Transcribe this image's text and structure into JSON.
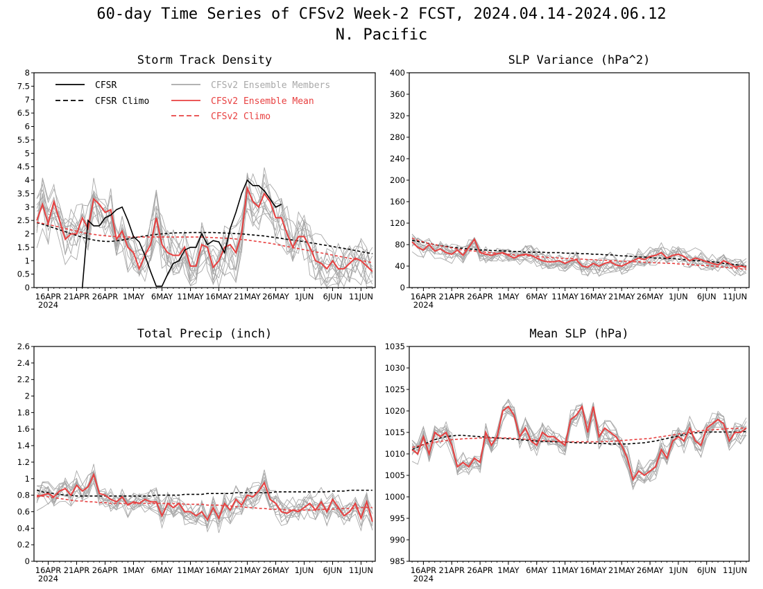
{
  "title": "60-day Time Series of CFSv2 Week-2 FCST, 2024.04.14-2024.06.12",
  "subtitle": "N. Pacific",
  "x_tick_labels": [
    "16APR",
    "21APR",
    "26APR",
    "1MAY",
    "6MAY",
    "11MAY",
    "16MAY",
    "21MAY",
    "26MAY",
    "1JUN",
    "6JUN",
    "11JUN"
  ],
  "x_year_label": "2024",
  "colors": {
    "cfsr": "#000000",
    "members": "#a8a8a8",
    "ens_mean": "#e84040"
  },
  "legend": {
    "cfsr": "CFSR",
    "cfsr_climo": "CFSR Climo",
    "members": "CFSv2 Ensemble Members",
    "ens_mean": "CFSv2 Ensemble Mean",
    "cfsv2_climo": "CFSv2 Climo"
  },
  "chart_data": [
    {
      "type": "line",
      "title": "Storm Track Density",
      "x_start": "2024-04-14",
      "x_end": "2024-06-12",
      "ylim": [
        0,
        8
      ],
      "yticks": [
        "0",
        "0.5",
        "1",
        "1.5",
        "2",
        "2.5",
        "3",
        "3.5",
        "4",
        "4.5",
        "5",
        "5.5",
        "6",
        "6.5",
        "7",
        "7.5",
        "8"
      ],
      "legend_position": "top-left",
      "series": [
        {
          "name": "CFSR",
          "values": [
            null,
            null,
            null,
            null,
            null,
            null,
            null,
            null,
            0,
            2.5,
            2.3,
            2.3,
            2.6,
            2.7,
            2.9,
            3.0,
            2.5,
            1.9,
            1.7,
            1.2,
            0.6,
            0.05,
            0.05,
            0.5,
            0.9,
            1.0,
            1.4,
            1.5,
            1.5,
            2.0,
            1.6,
            1.75,
            1.7,
            1.3,
            2.2,
            2.8,
            3.5,
            4.0,
            3.8,
            3.8,
            3.6,
            3.3,
            3.0,
            3.1,
            null,
            null,
            null,
            null,
            null,
            null,
            null,
            null,
            null,
            null,
            null,
            null,
            null,
            null,
            null,
            null
          ]
        },
        {
          "name": "CFSR Climo",
          "values": [
            2.42,
            2.36,
            2.29,
            2.22,
            2.15,
            2.08,
            2.01,
            1.94,
            1.87,
            1.82,
            1.77,
            1.74,
            1.72,
            1.72,
            1.74,
            1.77,
            1.81,
            1.85,
            1.89,
            1.92,
            1.95,
            1.98,
            2.0,
            2.02,
            2.03,
            2.04,
            2.04,
            2.05,
            2.05,
            2.05,
            2.05,
            2.05,
            2.04,
            2.03,
            2.02,
            2.01,
            2.0,
            1.98,
            1.96,
            1.94,
            1.92,
            1.89,
            1.86,
            1.83,
            1.8,
            1.77,
            1.74,
            1.71,
            1.67,
            1.64,
            1.6,
            1.57,
            1.53,
            1.49,
            1.46,
            1.42,
            1.38,
            1.34,
            1.3,
            1.26
          ]
        },
        {
          "name": "CFSv2 Ensemble Mean",
          "values": [
            2.5,
            3.1,
            2.4,
            3.2,
            2.5,
            1.8,
            2.0,
            2.0,
            2.6,
            2.2,
            3.3,
            3.1,
            2.8,
            2.9,
            1.8,
            2.1,
            1.5,
            1.3,
            0.7,
            1.2,
            1.6,
            2.6,
            1.6,
            1.3,
            1.2,
            1.2,
            1.5,
            0.8,
            0.8,
            1.6,
            1.5,
            0.75,
            1.0,
            1.5,
            1.6,
            1.3,
            2.0,
            3.7,
            3.2,
            3.0,
            3.5,
            3.2,
            2.6,
            2.6,
            2.0,
            1.5,
            1.9,
            1.9,
            1.5,
            1.0,
            0.9,
            0.7,
            1.0,
            0.7,
            0.7,
            0.9,
            1.1,
            1.0,
            0.8,
            0.6
          ]
        },
        {
          "name": "CFSv2 Climo",
          "values": [
            2.43,
            2.39,
            2.35,
            2.3,
            2.25,
            2.2,
            2.15,
            2.1,
            2.05,
            2.01,
            1.98,
            1.95,
            1.93,
            1.91,
            1.9,
            1.89,
            1.88,
            1.88,
            1.88,
            1.88,
            1.88,
            1.88,
            1.88,
            1.88,
            1.88,
            1.88,
            1.88,
            1.88,
            1.88,
            1.88,
            1.87,
            1.86,
            1.85,
            1.84,
            1.83,
            1.81,
            1.79,
            1.77,
            1.74,
            1.71,
            1.68,
            1.65,
            1.61,
            1.57,
            1.53,
            1.49,
            1.45,
            1.41,
            1.37,
            1.33,
            1.29,
            1.25,
            1.21,
            1.17,
            1.13,
            1.09,
            1.05,
            1.01,
            0.97,
            0.93
          ]
        }
      ]
    },
    {
      "type": "line",
      "title": "SLP Variance (hPa^2)",
      "x_start": "2024-04-14",
      "x_end": "2024-06-12",
      "ylim": [
        0,
        400
      ],
      "yticks": [
        "0",
        "40",
        "80",
        "120",
        "160",
        "200",
        "240",
        "280",
        "320",
        "360",
        "400"
      ],
      "series": [
        {
          "name": "CFSR Climo",
          "values": [
            88,
            86,
            84,
            82,
            80,
            78,
            77,
            75,
            74,
            73,
            72,
            71,
            70,
            70,
            69,
            69,
            68,
            68,
            67,
            67,
            66,
            66,
            66,
            66,
            65,
            65,
            65,
            64,
            64,
            64,
            63,
            63,
            62,
            62,
            61,
            61,
            60,
            59,
            59,
            58,
            57,
            57,
            56,
            55,
            55,
            54,
            54,
            53,
            52,
            51,
            50,
            50,
            49,
            48,
            47,
            45,
            44,
            43,
            41,
            40
          ]
        },
        {
          "name": "CFSv2 Ensemble Mean",
          "values": [
            85,
            75,
            70,
            80,
            68,
            72,
            65,
            62,
            70,
            60,
            75,
            90,
            65,
            62,
            60,
            63,
            65,
            60,
            55,
            60,
            62,
            60,
            55,
            50,
            48,
            48,
            50,
            45,
            50,
            52,
            40,
            38,
            45,
            40,
            45,
            48,
            42,
            40,
            45,
            50,
            55,
            52,
            58,
            60,
            65,
            55,
            60,
            62,
            58,
            50,
            55,
            52,
            48,
            45,
            42,
            50,
            45,
            38,
            40,
            38
          ]
        },
        {
          "name": "CFSv2 Climo",
          "values": [
            92,
            88,
            85,
            82,
            80,
            78,
            76,
            74,
            72,
            70,
            69,
            68,
            67,
            66,
            65,
            64,
            63,
            62,
            61,
            60,
            60,
            59,
            58,
            57,
            56,
            56,
            55,
            54,
            54,
            53,
            53,
            52,
            52,
            51,
            51,
            50,
            50,
            49,
            49,
            48,
            48,
            47,
            47,
            46,
            46,
            45,
            45,
            44,
            44,
            43,
            42,
            41,
            41,
            40,
            39,
            38,
            37,
            36,
            35,
            34
          ]
        }
      ]
    },
    {
      "type": "line",
      "title": "Total Precip (inch)",
      "x_start": "2024-04-14",
      "x_end": "2024-06-12",
      "ylim": [
        0,
        2.6
      ],
      "yticks": [
        "0",
        "0.2",
        "0.4",
        "0.6",
        "0.8",
        "1",
        "1.2",
        "1.4",
        "1.6",
        "1.8",
        "2",
        "2.2",
        "2.4",
        "2.6"
      ],
      "series": [
        {
          "name": "CFSR Climo",
          "values": [
            0.86,
            0.84,
            0.83,
            0.82,
            0.81,
            0.8,
            0.8,
            0.79,
            0.79,
            0.79,
            0.79,
            0.79,
            0.79,
            0.79,
            0.79,
            0.79,
            0.79,
            0.79,
            0.79,
            0.79,
            0.79,
            0.8,
            0.8,
            0.8,
            0.8,
            0.8,
            0.81,
            0.81,
            0.81,
            0.81,
            0.82,
            0.82,
            0.82,
            0.82,
            0.82,
            0.83,
            0.83,
            0.83,
            0.83,
            0.83,
            0.83,
            0.83,
            0.84,
            0.84,
            0.84,
            0.84,
            0.84,
            0.84,
            0.84,
            0.84,
            0.84,
            0.84,
            0.85,
            0.85,
            0.85,
            0.86,
            0.86,
            0.86,
            0.86,
            0.86
          ]
        },
        {
          "name": "CFSv2 Ensemble Mean",
          "values": [
            0.78,
            0.8,
            0.82,
            0.78,
            0.85,
            0.88,
            0.8,
            0.92,
            0.85,
            0.9,
            1.05,
            0.82,
            0.8,
            0.75,
            0.72,
            0.78,
            0.68,
            0.72,
            0.7,
            0.75,
            0.72,
            0.72,
            0.55,
            0.7,
            0.65,
            0.7,
            0.6,
            0.6,
            0.55,
            0.6,
            0.5,
            0.65,
            0.52,
            0.7,
            0.62,
            0.75,
            0.68,
            0.8,
            0.78,
            0.85,
            0.95,
            0.75,
            0.7,
            0.6,
            0.58,
            0.62,
            0.6,
            0.65,
            0.7,
            0.62,
            0.72,
            0.6,
            0.75,
            0.65,
            0.55,
            0.6,
            0.7,
            0.52,
            0.72,
            0.48
          ]
        },
        {
          "name": "CFSv2 Climo",
          "values": [
            0.8,
            0.79,
            0.78,
            0.77,
            0.76,
            0.75,
            0.74,
            0.73,
            0.73,
            0.72,
            0.72,
            0.71,
            0.71,
            0.7,
            0.7,
            0.7,
            0.7,
            0.7,
            0.7,
            0.7,
            0.7,
            0.7,
            0.7,
            0.7,
            0.7,
            0.7,
            0.69,
            0.69,
            0.69,
            0.69,
            0.68,
            0.68,
            0.68,
            0.67,
            0.67,
            0.66,
            0.66,
            0.65,
            0.65,
            0.64,
            0.64,
            0.63,
            0.63,
            0.63,
            0.62,
            0.62,
            0.62,
            0.62,
            0.62,
            0.62,
            0.63,
            0.63,
            0.63,
            0.64,
            0.64,
            0.64,
            0.64,
            0.65,
            0.65,
            0.65
          ]
        }
      ]
    },
    {
      "type": "line",
      "title": "Mean SLP (hPa)",
      "x_start": "2024-04-14",
      "x_end": "2024-06-12",
      "ylim": [
        985,
        1035
      ],
      "yticks": [
        "985",
        "990",
        "995",
        "1000",
        "1005",
        "1010",
        "1015",
        "1020",
        "1025",
        "1030",
        "1035"
      ],
      "series": [
        {
          "name": "CFSR Climo",
          "values": [
            1011.0,
            1011.6,
            1012.2,
            1012.8,
            1013.3,
            1013.7,
            1014.0,
            1014.2,
            1014.3,
            1014.3,
            1014.2,
            1014.1,
            1014.0,
            1013.9,
            1013.8,
            1013.7,
            1013.6,
            1013.5,
            1013.4,
            1013.3,
            1013.2,
            1013.1,
            1013.0,
            1012.9,
            1012.9,
            1012.8,
            1012.8,
            1012.7,
            1012.7,
            1012.6,
            1012.6,
            1012.5,
            1012.5,
            1012.4,
            1012.4,
            1012.3,
            1012.3,
            1012.3,
            1012.3,
            1012.4,
            1012.5,
            1012.6,
            1012.8,
            1013.0,
            1013.3,
            1013.6,
            1013.9,
            1014.2,
            1014.5,
            1014.7,
            1014.9,
            1015.0,
            1015.1,
            1015.1,
            1015.1,
            1015.1,
            1015.1,
            1015.1,
            1015.1,
            1015.2
          ]
        },
        {
          "name": "CFSv2 Ensemble Mean",
          "values": [
            1011,
            1010,
            1014,
            1010,
            1015,
            1014,
            1015,
            1012,
            1007,
            1008,
            1007,
            1009,
            1008,
            1015,
            1012,
            1014,
            1020,
            1021,
            1019,
            1014,
            1016,
            1013,
            1012,
            1015,
            1014,
            1014,
            1013,
            1012,
            1018,
            1019,
            1021,
            1015,
            1021,
            1014,
            1016,
            1015,
            1014,
            1012,
            1009,
            1004,
            1006,
            1005,
            1006,
            1007,
            1011,
            1009,
            1013,
            1014,
            1013,
            1016,
            1013,
            1012,
            1016,
            1017,
            1018,
            1017,
            1013,
            1015,
            1015,
            1016
          ]
        },
        {
          "name": "CFSv2 Climo",
          "values": [
            1011.5,
            1011.8,
            1012.1,
            1012.4,
            1012.7,
            1012.9,
            1013.1,
            1013.3,
            1013.4,
            1013.5,
            1013.6,
            1013.6,
            1013.7,
            1013.7,
            1013.7,
            1013.7,
            1013.7,
            1013.7,
            1013.6,
            1013.5,
            1013.4,
            1013.3,
            1013.2,
            1013.1,
            1013.0,
            1012.9,
            1012.9,
            1012.8,
            1012.8,
            1012.8,
            1012.8,
            1012.8,
            1012.8,
            1012.8,
            1012.9,
            1012.9,
            1013.0,
            1013.1,
            1013.2,
            1013.3,
            1013.4,
            1013.5,
            1013.6,
            1013.8,
            1014.0,
            1014.2,
            1014.4,
            1014.6,
            1014.8,
            1015.0,
            1015.2,
            1015.4,
            1015.5,
            1015.6,
            1015.7,
            1015.8,
            1015.9,
            1015.9,
            1016.0,
            1016.0
          ]
        }
      ]
    }
  ]
}
